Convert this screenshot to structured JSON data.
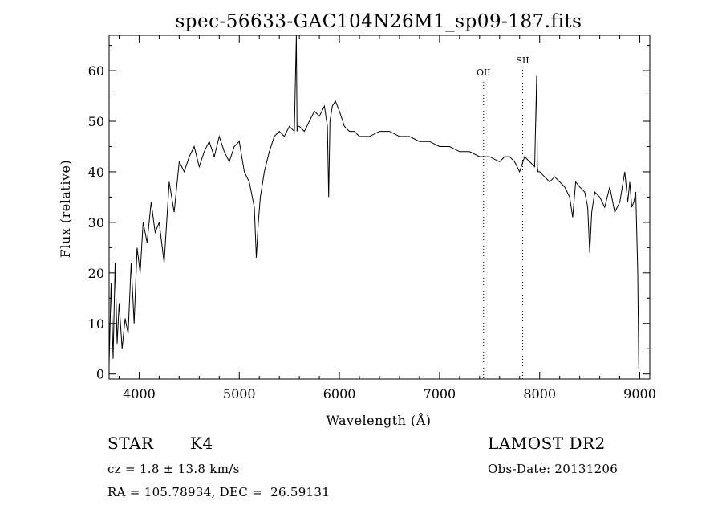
{
  "chart_data": {
    "type": "line",
    "title": "spec-56633-GAC104N26M1_sp09-187.fits",
    "xlabel": "Wavelength (Å)",
    "ylabel": "Flux (relative)",
    "xlim": [
      3700,
      9100
    ],
    "ylim": [
      -1,
      67
    ],
    "xticks": [
      4000,
      5000,
      6000,
      7000,
      8000,
      9000
    ],
    "yticks": [
      0,
      10,
      20,
      30,
      40,
      50,
      60
    ],
    "grid": false,
    "series": [
      {
        "x": [
          3700,
          3720,
          3740,
          3760,
          3780,
          3800,
          3830,
          3860,
          3890,
          3920,
          3950,
          3980,
          4010,
          4040,
          4080,
          4120,
          4160,
          4200,
          4250,
          4300,
          4350,
          4400,
          4450,
          4500,
          4550,
          4600,
          4650,
          4700,
          4750,
          4800,
          4850,
          4900,
          4950,
          5000,
          5050,
          5100,
          5150,
          5170,
          5190,
          5210,
          5250,
          5300,
          5350,
          5400,
          5450,
          5500,
          5550,
          5570,
          5577,
          5584,
          5600,
          5650,
          5700,
          5750,
          5800,
          5850,
          5880,
          5893,
          5906,
          5930,
          5960,
          6000,
          6050,
          6100,
          6150,
          6200,
          6300,
          6400,
          6500,
          6600,
          6700,
          6800,
          6900,
          7000,
          7100,
          7200,
          7300,
          7400,
          7500,
          7600,
          7650,
          7700,
          7750,
          7800,
          7850,
          7900,
          7950,
          7970,
          7977,
          7984,
          8000,
          8050,
          8100,
          8150,
          8200,
          8250,
          8300,
          8330,
          8360,
          8400,
          8450,
          8480,
          8500,
          8520,
          8550,
          8600,
          8650,
          8700,
          8750,
          8800,
          8850,
          8880,
          8900,
          8920,
          8940,
          8960,
          8980,
          8990
        ],
        "y": [
          2,
          18,
          3,
          22,
          6,
          14,
          5,
          11,
          8,
          22,
          10,
          25,
          20,
          30,
          26,
          34,
          28,
          30,
          22,
          38,
          32,
          42,
          40,
          43,
          45,
          41,
          44,
          46,
          43,
          47,
          44,
          42,
          45,
          46,
          40,
          38,
          33,
          23,
          30,
          35,
          40,
          44,
          47,
          48,
          47,
          49,
          48,
          67,
          48,
          49,
          49,
          48,
          50,
          52,
          51,
          53,
          49,
          35,
          50,
          53,
          54,
          52,
          49,
          48,
          48,
          47,
          47,
          48,
          48,
          47,
          47,
          46,
          46,
          45,
          45,
          44,
          44,
          43,
          43,
          42,
          43,
          43,
          42,
          40,
          43,
          42,
          41,
          59,
          41,
          40,
          40,
          39,
          38,
          39,
          38,
          37,
          35,
          31,
          38,
          37,
          36,
          33,
          24,
          32,
          36,
          35,
          33,
          37,
          32,
          34,
          40,
          34,
          38,
          33,
          34,
          36,
          20,
          1
        ]
      }
    ],
    "annotations": [
      {
        "text": "OII",
        "x": 7440
      },
      {
        "text": "SII",
        "x": 7830
      }
    ]
  },
  "info": {
    "object_class": "STAR",
    "subclass": "K4",
    "survey": "LAMOST DR2",
    "cz": "cz = 1.8 ± 13.8 km/s",
    "obs_date": "Obs-Date: 20131206",
    "coords": "RA = 105.78934, DEC =  26.59131"
  }
}
